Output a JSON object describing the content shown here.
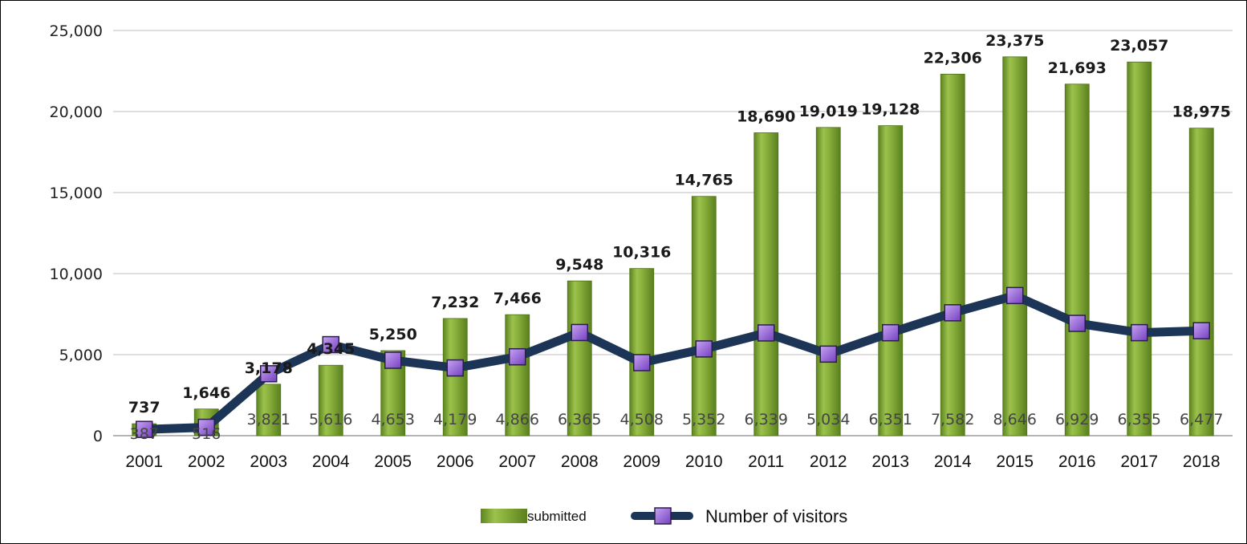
{
  "chart_data": {
    "type": "bar",
    "categories": [
      "2001",
      "2002",
      "2003",
      "2004",
      "2005",
      "2006",
      "2007",
      "2008",
      "2009",
      "2010",
      "2011",
      "2012",
      "2013",
      "2014",
      "2015",
      "2016",
      "2017",
      "2018"
    ],
    "y_ticks": [
      "0",
      "5,000",
      "10,000",
      "15,000",
      "20,000",
      "25,000"
    ],
    "ylim": [
      0,
      25000
    ],
    "grid": true,
    "legend_position": "bottom",
    "series": [
      {
        "name": "submitted",
        "type": "bar",
        "color": "#7da333",
        "values": [
          737,
          1646,
          3178,
          4345,
          5250,
          7232,
          7466,
          9548,
          10316,
          14765,
          18690,
          19019,
          19128,
          22306,
          23375,
          21693,
          23057,
          18975
        ],
        "labels": [
          "737",
          "1,646",
          "3,178",
          "4,345",
          "5,250",
          "7,232",
          "7,466",
          "9,548",
          "10,316",
          "14,765",
          "18,690",
          "19,019",
          "19,128",
          "22,306",
          "23,375",
          "21,693",
          "23,057",
          "18,975"
        ]
      },
      {
        "name": "Number of visitors",
        "type": "line",
        "color": "#1c3557",
        "marker_color": "#8a4fd0",
        "values": [
          387,
          516,
          3821,
          5616,
          4653,
          4179,
          4866,
          6365,
          4508,
          5352,
          6339,
          5034,
          6351,
          7582,
          8646,
          6929,
          6355,
          6477
        ],
        "labels": [
          "387",
          "516",
          "3,821",
          "5,616",
          "4,653",
          "4,179",
          "4,866",
          "6,365",
          "4,508",
          "5,352",
          "6,339",
          "5,034",
          "6,351",
          "7,582",
          "8,646",
          "6,929",
          "6,355",
          "6,477"
        ]
      }
    ]
  }
}
